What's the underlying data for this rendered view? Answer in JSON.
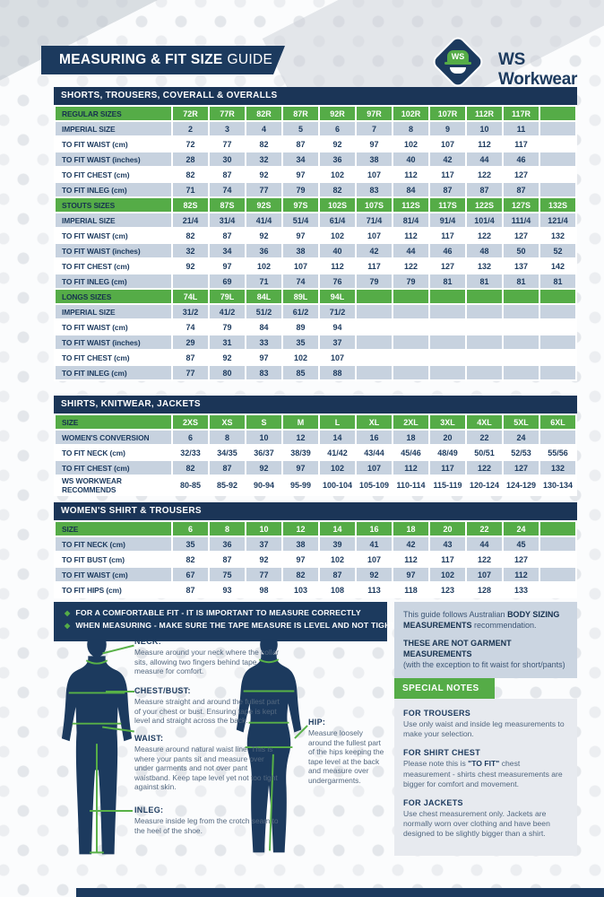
{
  "colors": {
    "navy": "#1C3A5E",
    "green": "#55AC47",
    "row_light": "#C7D2DF",
    "leader_green": "#58B147"
  },
  "header": {
    "title_bold": "MEASURING & FIT SIZE",
    "title_light": "GUIDE",
    "logo_monogram": "WS",
    "brand": "WS Workwear"
  },
  "size_tables": [
    {
      "title": "SHORTS, TROUSERS, COVERALL & OVERALLS",
      "rows": [
        {
          "kind": "sizes",
          "label": "REGULAR SIZES",
          "values": [
            "72R",
            "77R",
            "82R",
            "87R",
            "92R",
            "97R",
            "102R",
            "107R",
            "112R",
            "117R",
            ""
          ]
        },
        {
          "kind": "data",
          "label": "IMPERIAL SIZE",
          "values": [
            "2",
            "3",
            "4",
            "5",
            "6",
            "7",
            "8",
            "9",
            "10",
            "11",
            ""
          ]
        },
        {
          "kind": "data",
          "label": "TO FIT WAIST (cm)",
          "values": [
            "72",
            "77",
            "82",
            "87",
            "92",
            "97",
            "102",
            "107",
            "112",
            "117",
            ""
          ]
        },
        {
          "kind": "data",
          "label": "TO FIT WAIST (inches)",
          "values": [
            "28",
            "30",
            "32",
            "34",
            "36",
            "38",
            "40",
            "42",
            "44",
            "46",
            ""
          ]
        },
        {
          "kind": "data",
          "label": "TO FIT CHEST (cm)",
          "values": [
            "82",
            "87",
            "92",
            "97",
            "102",
            "107",
            "112",
            "117",
            "122",
            "127",
            ""
          ]
        },
        {
          "kind": "data",
          "label": "TO FIT INLEG (cm)",
          "values": [
            "71",
            "74",
            "77",
            "79",
            "82",
            "83",
            "84",
            "87",
            "87",
            "87",
            ""
          ]
        },
        {
          "kind": "sizes",
          "label": "STOUTS SIZES",
          "values": [
            "82S",
            "87S",
            "92S",
            "97S",
            "102S",
            "107S",
            "112S",
            "117S",
            "122S",
            "127S",
            "132S"
          ]
        },
        {
          "kind": "data",
          "label": "IMPERIAL SIZE",
          "values": [
            "21/4",
            "31/4",
            "41/4",
            "51/4",
            "61/4",
            "71/4",
            "81/4",
            "91/4",
            "101/4",
            "111/4",
            "121/4"
          ]
        },
        {
          "kind": "data",
          "label": "TO FIT WAIST (cm)",
          "values": [
            "82",
            "87",
            "92",
            "97",
            "102",
            "107",
            "112",
            "117",
            "122",
            "127",
            "132"
          ]
        },
        {
          "kind": "data",
          "label": "TO FIT WAIST (inches)",
          "values": [
            "32",
            "34",
            "36",
            "38",
            "40",
            "42",
            "44",
            "46",
            "48",
            "50",
            "52"
          ]
        },
        {
          "kind": "data",
          "label": "TO FIT CHEST (cm)",
          "values": [
            "92",
            "97",
            "102",
            "107",
            "112",
            "117",
            "122",
            "127",
            "132",
            "137",
            "142"
          ]
        },
        {
          "kind": "data",
          "label": "TO FIT INLEG (cm)",
          "values": [
            "",
            "69",
            "71",
            "74",
            "76",
            "79",
            "79",
            "81",
            "81",
            "81",
            "81"
          ]
        },
        {
          "kind": "sizes",
          "label": "LONGS SIZES",
          "values": [
            "74L",
            "79L",
            "84L",
            "89L",
            "94L",
            "",
            "",
            "",
            "",
            "",
            ""
          ]
        },
        {
          "kind": "data",
          "label": "IMPERIAL SIZE",
          "values": [
            "31/2",
            "41/2",
            "51/2",
            "61/2",
            "71/2",
            "",
            "",
            "",
            "",
            "",
            ""
          ]
        },
        {
          "kind": "data",
          "label": "TO FIT WAIST (cm)",
          "values": [
            "74",
            "79",
            "84",
            "89",
            "94",
            "",
            "",
            "",
            "",
            "",
            ""
          ]
        },
        {
          "kind": "data",
          "label": "TO FIT WAIST (inches)",
          "values": [
            "29",
            "31",
            "33",
            "35",
            "37",
            "",
            "",
            "",
            "",
            "",
            ""
          ]
        },
        {
          "kind": "data",
          "label": "TO FIT CHEST (cm)",
          "values": [
            "87",
            "92",
            "97",
            "102",
            "107",
            "",
            "",
            "",
            "",
            "",
            ""
          ]
        },
        {
          "kind": "data",
          "label": "TO FIT INLEG (cm)",
          "values": [
            "77",
            "80",
            "83",
            "85",
            "88",
            "",
            "",
            "",
            "",
            "",
            ""
          ]
        }
      ]
    },
    {
      "title": "SHIRTS, KNITWEAR, JACKETS",
      "rows": [
        {
          "kind": "sizes",
          "label": "SIZE",
          "values": [
            "2XS",
            "XS",
            "S",
            "M",
            "L",
            "XL",
            "2XL",
            "3XL",
            "4XL",
            "5XL",
            "6XL"
          ]
        },
        {
          "kind": "data",
          "label": "WOMEN'S CONVERSION",
          "values": [
            "6",
            "8",
            "10",
            "12",
            "14",
            "16",
            "18",
            "20",
            "22",
            "24",
            ""
          ]
        },
        {
          "kind": "data",
          "label": "TO FIT NECK (cm)",
          "values": [
            "32/33",
            "34/35",
            "36/37",
            "38/39",
            "41/42",
            "43/44",
            "45/46",
            "48/49",
            "50/51",
            "52/53",
            "55/56"
          ]
        },
        {
          "kind": "data",
          "label": "TO FIT CHEST (cm)",
          "values": [
            "82",
            "87",
            "92",
            "97",
            "102",
            "107",
            "112",
            "117",
            "122",
            "127",
            "132"
          ]
        },
        {
          "kind": "data",
          "label": "WS WORKWEAR RECOMMENDS",
          "values": [
            "80-85",
            "85-92",
            "90-94",
            "95-99",
            "100-104",
            "105-109",
            "110-114",
            "115-119",
            "120-124",
            "124-129",
            "130-134"
          ]
        }
      ]
    },
    {
      "title": "WOMEN'S SHIRT & TROUSERS",
      "rows": [
        {
          "kind": "sizes",
          "label": "SIZE",
          "values": [
            "6",
            "8",
            "10",
            "12",
            "14",
            "16",
            "18",
            "20",
            "22",
            "24",
            ""
          ]
        },
        {
          "kind": "data",
          "label": "TO FIT NECK (cm)",
          "values": [
            "35",
            "36",
            "37",
            "38",
            "39",
            "41",
            "42",
            "43",
            "44",
            "45",
            ""
          ]
        },
        {
          "kind": "data",
          "label": "TO FIT BUST (cm)",
          "values": [
            "82",
            "87",
            "92",
            "97",
            "102",
            "107",
            "112",
            "117",
            "122",
            "127",
            ""
          ]
        },
        {
          "kind": "data",
          "label": "TO FIT WAIST (cm)",
          "values": [
            "67",
            "75",
            "77",
            "82",
            "87",
            "92",
            "97",
            "102",
            "107",
            "112",
            ""
          ]
        },
        {
          "kind": "data",
          "label": "TO FIT HIPS (cm)",
          "values": [
            "87",
            "93",
            "98",
            "103",
            "108",
            "113",
            "118",
            "123",
            "128",
            "133",
            ""
          ]
        }
      ]
    }
  ],
  "fit_banner": {
    "bullet_glyph": "◆",
    "line1": "FOR A COMFORTABLE FIT - IT IS IMPORTANT TO MEASURE CORRECTLY",
    "line2": "WHEN MEASURING - MAKE SURE THE TAPE MEASURE IS LEVEL AND NOT TIGHT"
  },
  "measure_points": [
    {
      "title": "NECK:",
      "text": "Measure around your neck where the collar sits, allowing two fingers behind tape measure for comfort."
    },
    {
      "title": "CHEST/BUST:",
      "text": "Measure straight and around the fullest part of your chest or bust. Ensuring tape is kept level and straight across the back."
    },
    {
      "title": "WAIST:",
      "text": "Measure around natural waist line. This is where your pants sit and measure over under garments and not over pant waistband. Keep tape level yet not too tight against skin."
    },
    {
      "title": "INLEG:",
      "text": "Measure inside leg from the crotch seam to the heel of the shoe."
    },
    {
      "title": "HIP:",
      "text": "Measure loosely around the fullest part of the hips keeping the tape level at the back and measure over undergarments."
    }
  ],
  "info_box": {
    "p1_pre": "This guide follows Australian ",
    "p1_bold": "BODY SIZING MEASUREMENTS",
    "p1_post": " recommendation.",
    "p2_bold": "THESE ARE NOT GARMENT MEASUREMENTS",
    "p2_text": "(with the exception to fit waist for short/pants)"
  },
  "special_notes": {
    "title": "SPECIAL NOTES",
    "items": [
      {
        "h": "FOR TROUSERS",
        "text": "Use only waist and inside leg measurements to make your selection."
      },
      {
        "h": "FOR SHIRT CHEST",
        "pre": "Please note this is ",
        "bold": "\"TO FIT\"",
        "post": " chest measurement - shirts chest measurements are bigger for comfort and movement."
      },
      {
        "h": "FOR JACKETS",
        "text": "Use chest measurement only. Jackets are normally worn over clothing and have been designed to be slightly bigger than a shirt."
      }
    ]
  }
}
